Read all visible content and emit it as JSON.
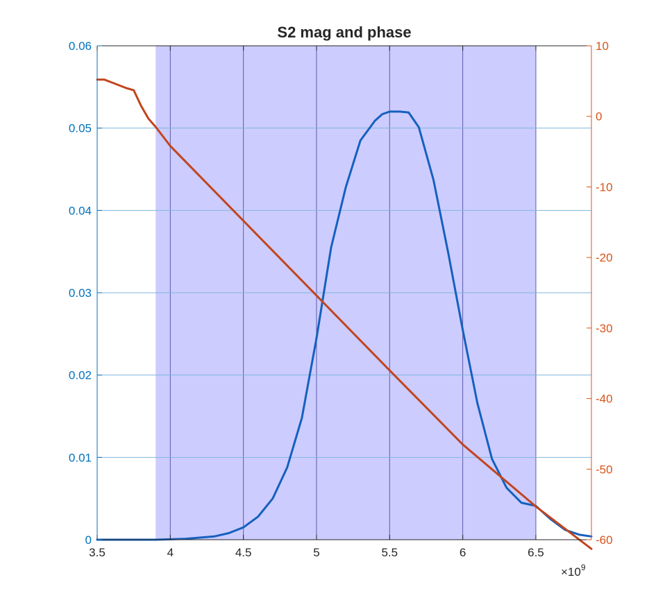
{
  "chart_data": {
    "type": "line",
    "title": "S2 mag and phase",
    "xlabel": "",
    "x_exponent_label": "×10",
    "x_exponent_power": "9",
    "xlim": [
      3.5,
      6.88
    ],
    "x_ticks": [
      3.5,
      4,
      4.5,
      5,
      5.5,
      6,
      6.5
    ],
    "x_tick_labels": [
      "3.5",
      "4",
      "4.5",
      "5",
      "5.5",
      "6",
      "6.5"
    ],
    "y_left": {
      "lim": [
        0,
        0.06
      ],
      "ticks": [
        0,
        0.01,
        0.02,
        0.03,
        0.04,
        0.05,
        0.06
      ],
      "tick_labels": [
        "0",
        "0.01",
        "0.02",
        "0.03",
        "0.04",
        "0.05",
        "0.06"
      ],
      "color": "#0072BD"
    },
    "y_right": {
      "lim": [
        -60,
        10
      ],
      "ticks": [
        -60,
        -50,
        -40,
        -30,
        -20,
        -10,
        0,
        10
      ],
      "tick_labels": [
        "-60",
        "-50",
        "-40",
        "-30",
        "-20",
        "-10",
        "0",
        "10"
      ],
      "color": "#D95319"
    },
    "grid": true,
    "shaded_band": {
      "x_start": 3.9,
      "x_end": 6.5,
      "color": "#CCCCFF"
    },
    "series": [
      {
        "axis": "left",
        "color": "#1560BD",
        "x": [
          3.5,
          3.9,
          4.1,
          4.3,
          4.4,
          4.5,
          4.6,
          4.7,
          4.8,
          4.9,
          5.0,
          5.1,
          5.2,
          5.3,
          5.4,
          5.45,
          5.5,
          5.57,
          5.63,
          5.7,
          5.8,
          5.9,
          6.0,
          6.1,
          6.2,
          6.3,
          6.4,
          6.5,
          6.6,
          6.7,
          6.8,
          6.88
        ],
        "y": [
          0.0,
          0.0,
          0.0001,
          0.0004,
          0.0008,
          0.0015,
          0.0028,
          0.005,
          0.0088,
          0.0148,
          0.0245,
          0.0355,
          0.0428,
          0.0485,
          0.0509,
          0.0517,
          0.052,
          0.052,
          0.0519,
          0.0501,
          0.0437,
          0.0349,
          0.0255,
          0.0166,
          0.0098,
          0.0063,
          0.0045,
          0.0041,
          0.0025,
          0.0012,
          0.0006,
          0.0004
        ]
      },
      {
        "axis": "right",
        "color": "#C0451E",
        "x": [
          3.5,
          3.55,
          3.6,
          3.7,
          3.75,
          3.8,
          3.85,
          3.9,
          4.0,
          4.5,
          5.0,
          5.5,
          6.0,
          6.5,
          6.88
        ],
        "y": [
          5.2,
          5.2,
          4.8,
          4.0,
          3.7,
          1.5,
          -0.3,
          -1.5,
          -4.2,
          -14.8,
          -25.4,
          -36.0,
          -46.5,
          -55.3,
          -61.3
        ]
      }
    ]
  }
}
